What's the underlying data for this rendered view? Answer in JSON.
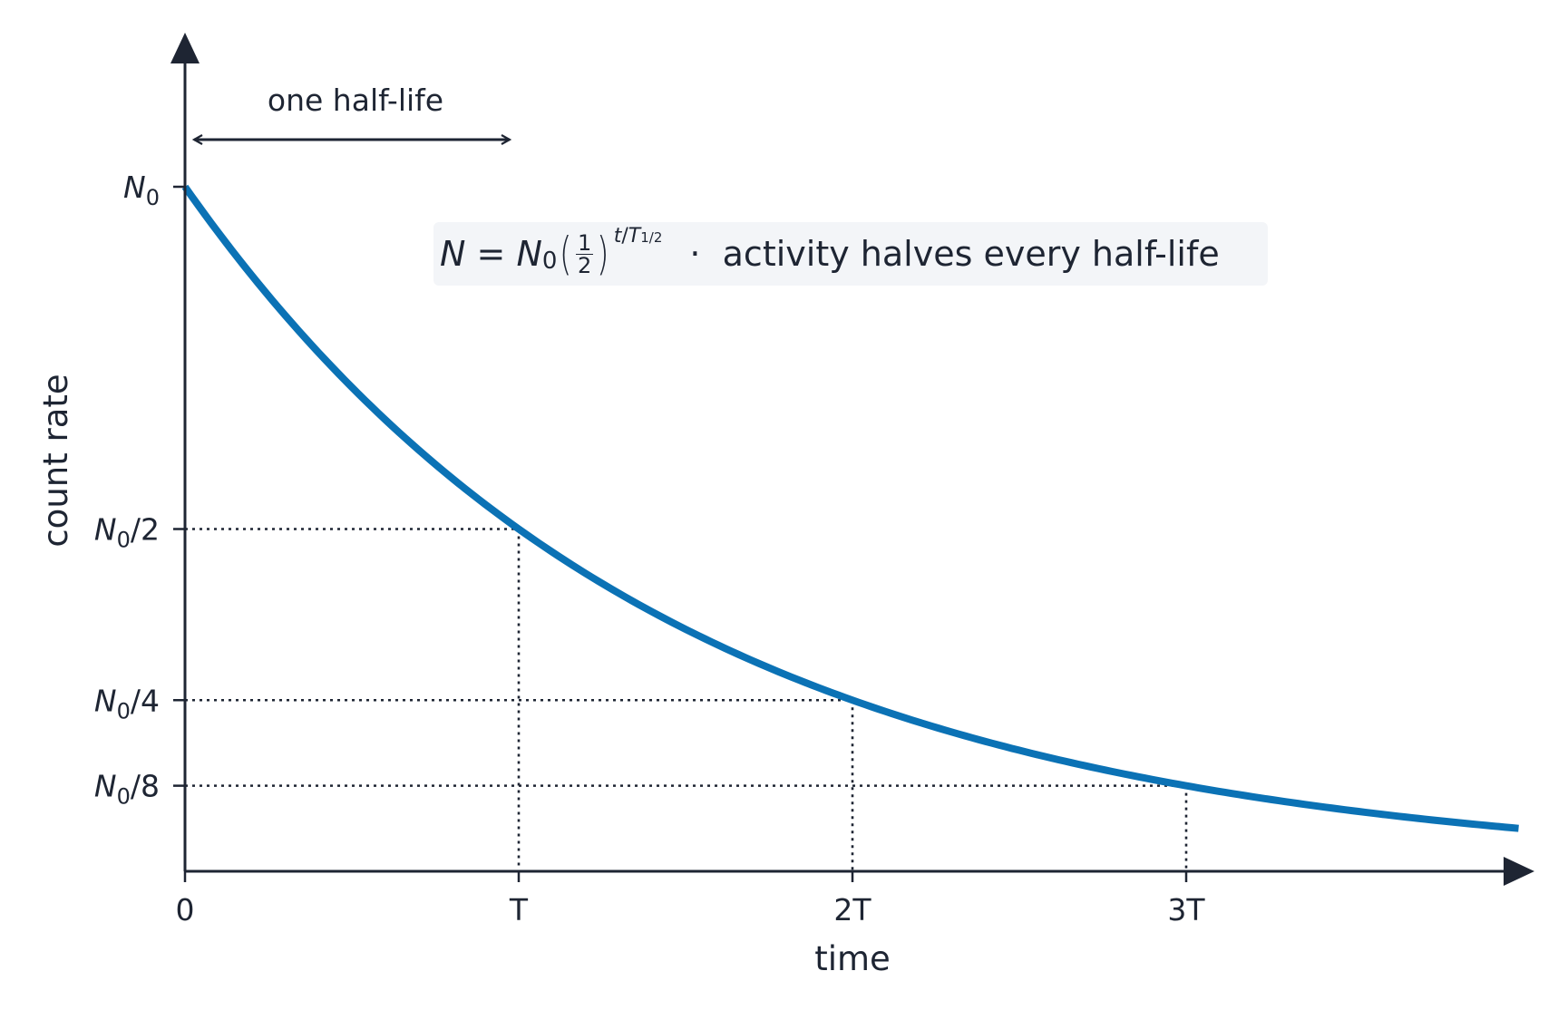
{
  "chart_data": {
    "type": "line",
    "title": "",
    "xlabel": "time",
    "ylabel": "count rate",
    "x_ticks": [
      "0",
      "T",
      "2T",
      "3T"
    ],
    "y_ticks": [
      {
        "base": "N",
        "sub": "0",
        "suffix": "",
        "value": 1.0
      },
      {
        "base": "N",
        "sub": "0",
        "suffix": "/2",
        "value": 0.5
      },
      {
        "base": "N",
        "sub": "0",
        "suffix": "/4",
        "value": 0.25
      },
      {
        "base": "N",
        "sub": "0",
        "suffix": "/8",
        "value": 0.125
      }
    ],
    "x_range_halflives": [
      0,
      4.0
    ],
    "y_range_fraction_of_N0": [
      0,
      1.0
    ],
    "series": [
      {
        "function": "N = N0 * (1/2)^(t/T)",
        "x_halflives": [
          0,
          0.5,
          1,
          1.5,
          2,
          2.5,
          3,
          3.5,
          4
        ],
        "y_fraction_of_N0": [
          1.0,
          0.707,
          0.5,
          0.354,
          0.25,
          0.177,
          0.125,
          0.088,
          0.0625
        ]
      }
    ],
    "guides": [
      {
        "x_halflives": 1,
        "y_fraction_of_N0": 0.5
      },
      {
        "x_halflives": 2,
        "y_fraction_of_N0": 0.25
      },
      {
        "x_halflives": 3,
        "y_fraction_of_N0": 0.125
      }
    ],
    "annotations": {
      "half_life_span_label": "one half-life",
      "half_life_span_halflives": [
        0,
        1
      ],
      "formula_text": "activity halves every half-life"
    },
    "grid": false,
    "colors": {
      "curve": "#0b72b5",
      "axis": "#1e2533",
      "annotation_bg": "#f3f5f8"
    }
  }
}
